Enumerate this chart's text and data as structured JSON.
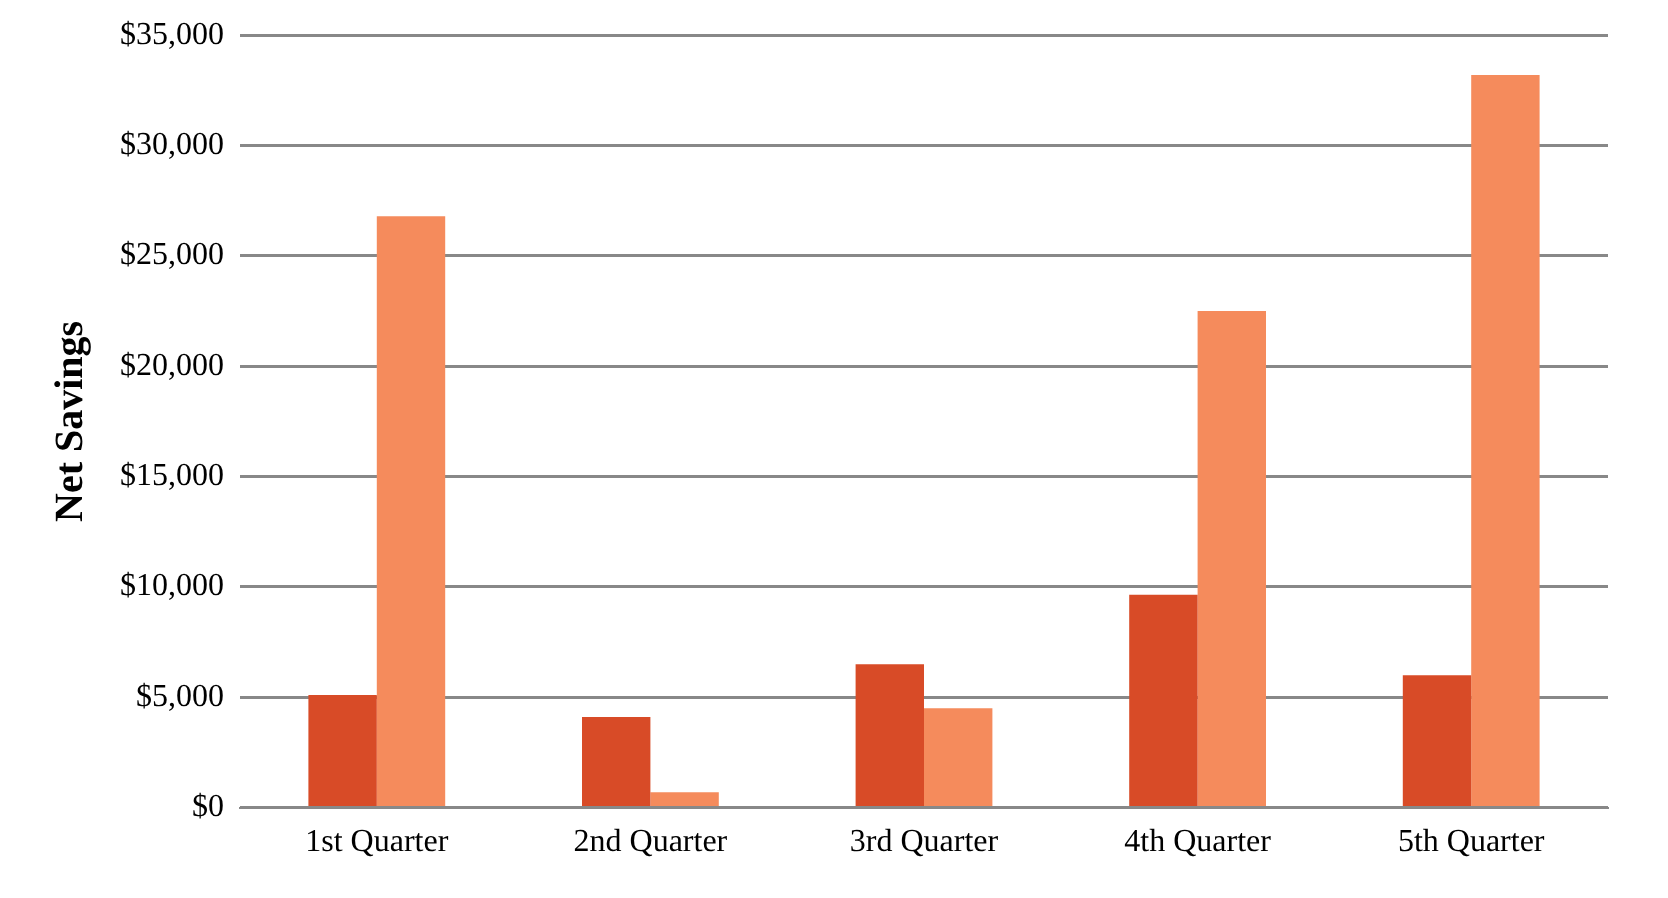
{
  "chart_data": {
    "type": "bar",
    "ylabel": "Net Savings",
    "categories": [
      "1st Quarter",
      "2nd Quarter",
      "3rd Quarter",
      "4th Quarter",
      "5th Quarter"
    ],
    "series": [
      {
        "color": "#d84b27",
        "values": [
          5100,
          4100,
          6500,
          9650,
          6000
        ]
      },
      {
        "color": "#f58b5c",
        "values": [
          26800,
          700,
          4500,
          22500,
          33200
        ]
      }
    ],
    "ylim": [
      0,
      35000
    ],
    "yticks": [
      {
        "value": 0,
        "label": "$0"
      },
      {
        "value": 5000,
        "label": "$5,000"
      },
      {
        "value": 10000,
        "label": "$10,000"
      },
      {
        "value": 15000,
        "label": "$15,000"
      },
      {
        "value": 20000,
        "label": "$20,000"
      },
      {
        "value": 25000,
        "label": "$25,000"
      },
      {
        "value": 30000,
        "label": "$30,000"
      },
      {
        "value": 35000,
        "label": "$35,000"
      }
    ],
    "grid": "y",
    "legend": false
  }
}
